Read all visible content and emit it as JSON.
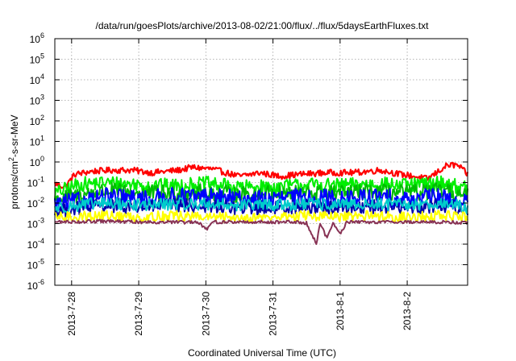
{
  "chart_data": {
    "type": "line",
    "title": "/data/run/goesPlots/archive/2013-08-02/21:00/flux/../flux/5daysEarthFluxes.txt",
    "xlabel": "Coordinated Universal Time (UTC)",
    "ylabel": {
      "base": "protons/cm",
      "sup": "2",
      "rest": "-s-sr-MeV"
    },
    "x_tick_labels": [
      "2013-7-28",
      "2013-7-29",
      "2013-7-30",
      "2013-7-31",
      "2013-8-1",
      "2013-8-2"
    ],
    "y_ticks": [
      {
        "base": "10",
        "exp": "6"
      },
      {
        "base": "10",
        "exp": "5"
      },
      {
        "base": "10",
        "exp": "4"
      },
      {
        "base": "10",
        "exp": "3"
      },
      {
        "base": "10",
        "exp": "2"
      },
      {
        "base": "10",
        "exp": "1"
      },
      {
        "base": "10",
        "exp": "0"
      },
      {
        "base": "10",
        "exp": "-1"
      },
      {
        "base": "10",
        "exp": "-2"
      },
      {
        "base": "10",
        "exp": "-3"
      },
      {
        "base": "10",
        "exp": "-4"
      },
      {
        "base": "10",
        "exp": "-5"
      },
      {
        "base": "10",
        "exp": "-6"
      }
    ],
    "x_range_days": [
      -0.25,
      5.9
    ],
    "ylim": [
      1e-06,
      1000000.0
    ],
    "yscale": "log",
    "grid": true,
    "series": [
      {
        "color": "#ff0000",
        "points": [
          [
            -0.25,
            0.09
          ],
          [
            -0.1,
            0.06
          ],
          [
            0.05,
            0.25
          ],
          [
            0.3,
            0.35
          ],
          [
            0.6,
            0.4
          ],
          [
            0.9,
            0.4
          ],
          [
            1.2,
            0.3
          ],
          [
            1.6,
            0.4
          ],
          [
            1.8,
            0.55
          ],
          [
            2.1,
            0.45
          ],
          [
            2.5,
            0.2
          ],
          [
            2.8,
            0.3
          ],
          [
            3.1,
            0.2
          ],
          [
            3.4,
            0.25
          ],
          [
            3.8,
            0.3
          ],
          [
            4.2,
            0.3
          ],
          [
            4.6,
            0.4
          ],
          [
            4.9,
            0.25
          ],
          [
            5.1,
            0.2
          ],
          [
            5.3,
            0.15
          ],
          [
            5.6,
            0.7
          ],
          [
            5.75,
            0.7
          ],
          [
            5.9,
            0.25
          ]
        ]
      },
      {
        "color": "#00ee00",
        "points": [
          [
            -0.25,
            0.03
          ],
          [
            0.1,
            0.08
          ],
          [
            0.5,
            0.1
          ],
          [
            1.0,
            0.08
          ],
          [
            1.5,
            0.07
          ],
          [
            2.0,
            0.09
          ],
          [
            2.5,
            0.06
          ],
          [
            3.0,
            0.06
          ],
          [
            3.5,
            0.08
          ],
          [
            4.0,
            0.07
          ],
          [
            4.5,
            0.09
          ],
          [
            5.0,
            0.07
          ],
          [
            5.5,
            0.1
          ],
          [
            5.9,
            0.05
          ]
        ]
      },
      {
        "color": "#00bb00",
        "points": [
          [
            -0.25,
            0.015
          ],
          [
            0.5,
            0.04
          ],
          [
            1.0,
            0.03
          ],
          [
            1.5,
            0.03
          ],
          [
            2.0,
            0.035
          ],
          [
            2.5,
            0.025
          ],
          [
            3.0,
            0.03
          ],
          [
            3.5,
            0.03
          ],
          [
            4.0,
            0.03
          ],
          [
            4.5,
            0.035
          ],
          [
            5.0,
            0.03
          ],
          [
            5.5,
            0.04
          ],
          [
            5.9,
            0.02
          ]
        ]
      },
      {
        "color": "#0000ff",
        "points": [
          [
            -0.25,
            0.008
          ],
          [
            0.5,
            0.02
          ],
          [
            1.0,
            0.015
          ],
          [
            1.5,
            0.02
          ],
          [
            2.0,
            0.02
          ],
          [
            2.5,
            0.015
          ],
          [
            3.0,
            0.015
          ],
          [
            3.5,
            0.02
          ],
          [
            4.0,
            0.015
          ],
          [
            4.5,
            0.02
          ],
          [
            5.0,
            0.015
          ],
          [
            5.5,
            0.02
          ],
          [
            5.9,
            0.01
          ]
        ]
      },
      {
        "color": "#0000aa",
        "points": [
          [
            -0.25,
            0.004
          ],
          [
            0.5,
            0.008
          ],
          [
            1.0,
            0.006
          ],
          [
            1.5,
            0.008
          ],
          [
            2.0,
            0.007
          ],
          [
            2.5,
            0.006
          ],
          [
            3.0,
            0.006
          ],
          [
            3.5,
            0.007
          ],
          [
            4.0,
            0.006
          ],
          [
            4.5,
            0.007
          ],
          [
            5.0,
            0.006
          ],
          [
            5.5,
            0.008
          ],
          [
            5.9,
            0.005
          ]
        ]
      },
      {
        "color": "#00cccc",
        "points": [
          [
            -0.25,
            0.006
          ],
          [
            0.5,
            0.01
          ],
          [
            1.0,
            0.008
          ],
          [
            1.5,
            0.009
          ],
          [
            2.0,
            0.009
          ],
          [
            2.5,
            0.008
          ],
          [
            3.0,
            0.008
          ],
          [
            3.5,
            0.009
          ],
          [
            4.0,
            0.008
          ],
          [
            4.5,
            0.009
          ],
          [
            5.0,
            0.008
          ],
          [
            5.5,
            0.01
          ],
          [
            5.9,
            0.006
          ]
        ]
      },
      {
        "color": "#ffff00",
        "points": [
          [
            -0.25,
            0.002
          ],
          [
            0.5,
            0.0025
          ],
          [
            1.0,
            0.002
          ],
          [
            1.5,
            0.0025
          ],
          [
            2.0,
            0.002
          ],
          [
            2.5,
            0.002
          ],
          [
            3.0,
            0.002
          ],
          [
            3.5,
            0.0025
          ],
          [
            4.0,
            0.002
          ],
          [
            4.5,
            0.0025
          ],
          [
            5.0,
            0.002
          ],
          [
            5.5,
            0.0025
          ],
          [
            5.9,
            0.002
          ]
        ]
      },
      {
        "color": "#883355",
        "points": [
          [
            -0.25,
            0.0012
          ],
          [
            0.5,
            0.0013
          ],
          [
            1.0,
            0.0012
          ],
          [
            1.5,
            0.0012
          ],
          [
            1.9,
            0.0011
          ],
          [
            2.0,
            0.0005
          ],
          [
            2.1,
            0.0012
          ],
          [
            2.5,
            0.0012
          ],
          [
            3.0,
            0.0012
          ],
          [
            3.3,
            0.0012
          ],
          [
            3.5,
            0.0011
          ],
          [
            3.65,
            0.0001
          ],
          [
            3.7,
            0.0011
          ],
          [
            3.8,
            0.0002
          ],
          [
            3.9,
            0.0011
          ],
          [
            4.0,
            0.0003
          ],
          [
            4.1,
            0.0012
          ],
          [
            4.5,
            0.0012
          ],
          [
            5.0,
            0.0012
          ],
          [
            5.5,
            0.0012
          ],
          [
            5.9,
            0.0011
          ]
        ]
      }
    ]
  }
}
